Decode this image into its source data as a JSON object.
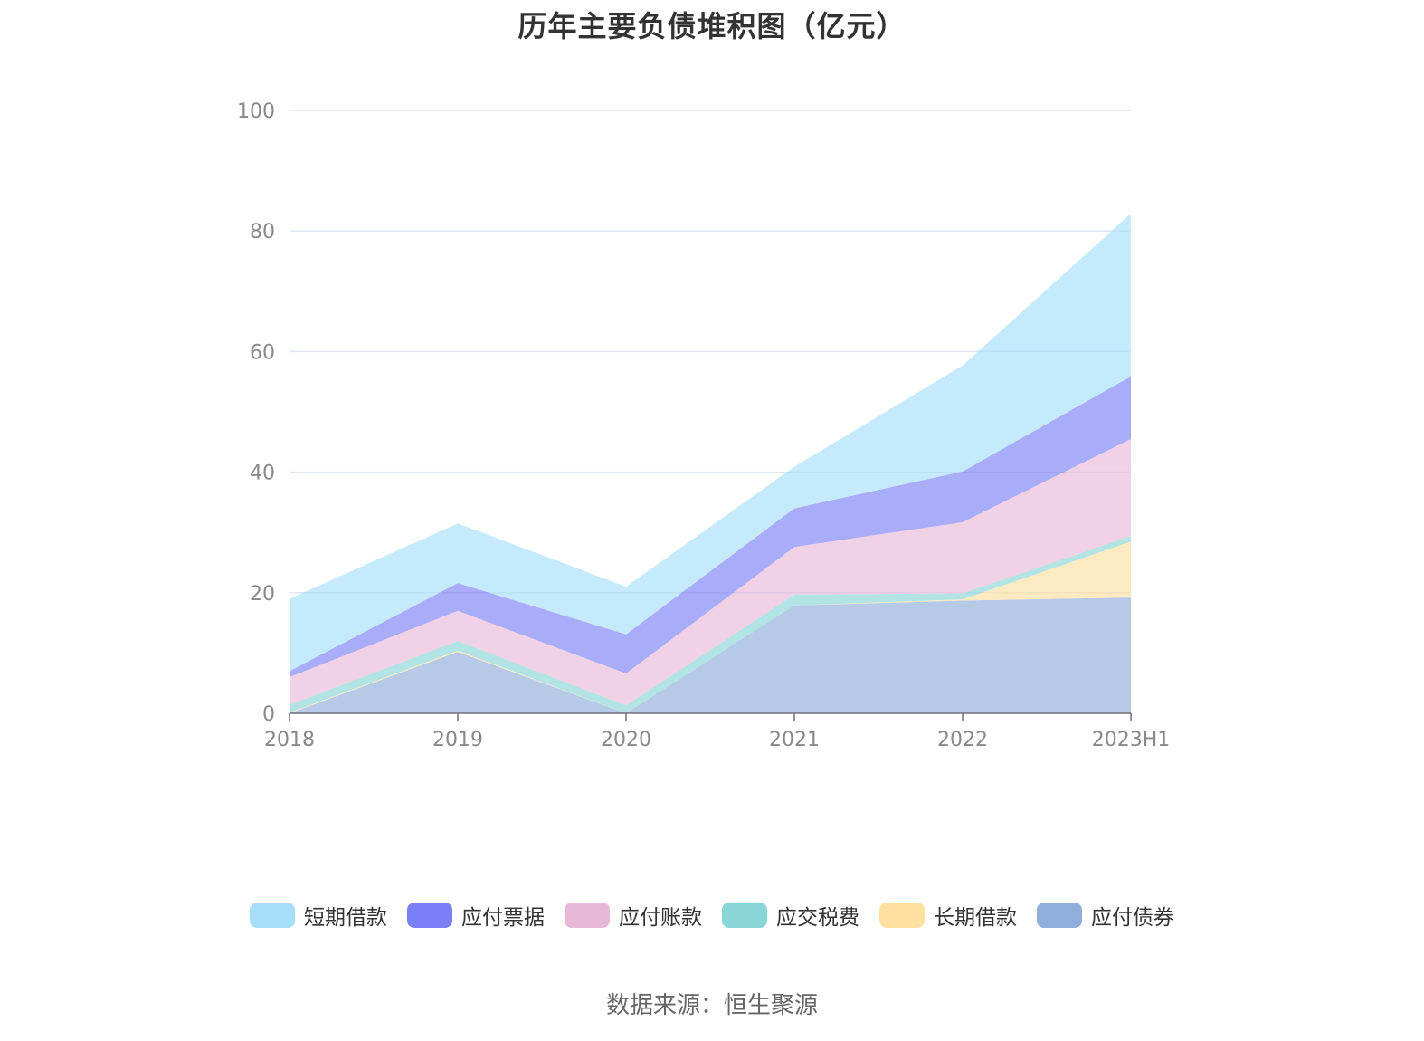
{
  "title": "历年主要负债堆积图（亿元）",
  "source": "数据来源：恒生聚源",
  "chart_data": {
    "type": "area",
    "stacked": true,
    "title": "历年主要负债堆积图（亿元）",
    "categories": [
      "2018",
      "2019",
      "2020",
      "2021",
      "2022",
      "2023H1"
    ],
    "ylim": [
      0,
      100
    ],
    "yticks": [
      "0",
      "20",
      "40",
      "60",
      "80",
      "100"
    ],
    "grid": true,
    "legend_position": "bottom",
    "series": [
      {
        "name": "应付债券",
        "color": "#8faedc",
        "values": [
          0,
          10.2,
          0,
          17.9,
          18.7,
          19.2
        ]
      },
      {
        "name": "长期借款",
        "color": "#fddf9f",
        "values": [
          0.1,
          0.2,
          0,
          0,
          0.2,
          9.3
        ]
      },
      {
        "name": "应交税费",
        "color": "#88d6d8",
        "values": [
          1.3,
          1.6,
          1.3,
          1.8,
          1.0,
          0.9
        ]
      },
      {
        "name": "应付账款",
        "color": "#e8b8d8",
        "values": [
          4.6,
          5.0,
          5.3,
          7.9,
          11.8,
          16.1
        ]
      },
      {
        "name": "应付票据",
        "color": "#7b7ff5",
        "values": [
          1.0,
          4.6,
          6.5,
          6.4,
          8.4,
          10.4
        ]
      },
      {
        "name": "短期借款",
        "color": "#a6def9",
        "values": [
          12.0,
          9.9,
          7.9,
          6.9,
          17.6,
          27.0
        ]
      }
    ],
    "legend": [
      {
        "name": "短期借款",
        "color": "#a6def9"
      },
      {
        "name": "应付票据",
        "color": "#7b7ff5"
      },
      {
        "name": "应付账款",
        "color": "#e8b8d8"
      },
      {
        "name": "应交税费",
        "color": "#88d6d8"
      },
      {
        "name": "长期借款",
        "color": "#fddf9f"
      },
      {
        "name": "应付债券",
        "color": "#8faedc"
      }
    ]
  }
}
